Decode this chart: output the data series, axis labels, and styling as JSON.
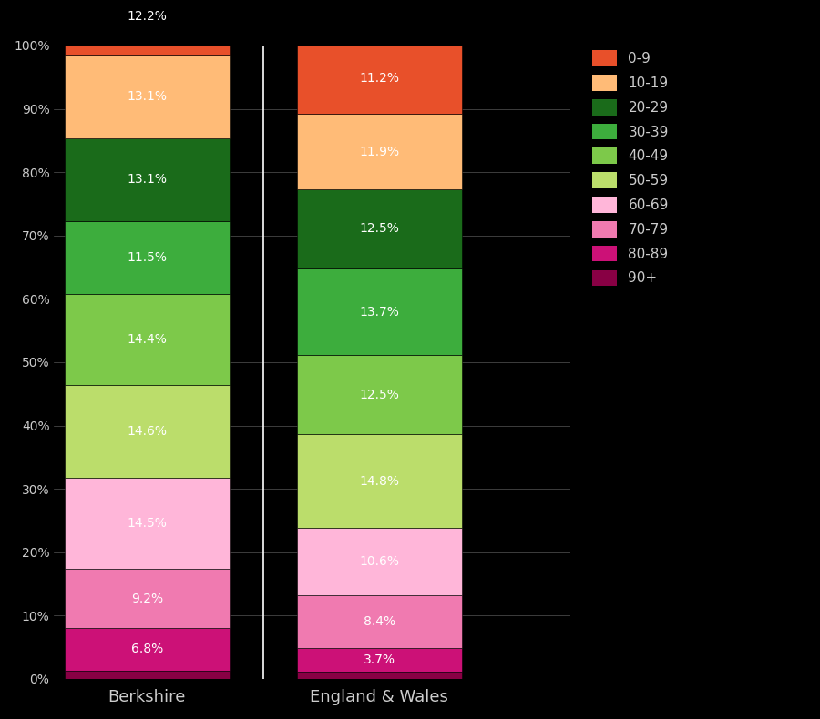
{
  "categories": [
    "Berkshire",
    "England & Wales"
  ],
  "age_groups_top_to_bottom": [
    "0-9",
    "10-19",
    "20-29",
    "30-39",
    "40-49",
    "50-59",
    "60-69",
    "70-79",
    "80-89",
    "90+"
  ],
  "colors": {
    "0-9": "#E8502A",
    "10-19": "#FFBB77",
    "20-29": "#1A6B1A",
    "30-39": "#3DAD3D",
    "40-49": "#7DC94A",
    "50-59": "#BBDD6B",
    "60-69": "#FFB6D9",
    "70-79": "#F07AB0",
    "80-89": "#CC1177",
    "90+": "#880044"
  },
  "values": {
    "Berkshire": {
      "90+": 1.3,
      "80-89": 6.8,
      "70-79": 9.2,
      "60-69": 14.5,
      "50-59": 14.6,
      "40-49": 14.4,
      "30-39": 11.5,
      "20-29": 13.1,
      "10-19": 13.1,
      "0-9": 12.2
    },
    "England & Wales": {
      "90+": 1.1,
      "80-89": 3.7,
      "70-79": 8.4,
      "60-69": 10.6,
      "50-59": 14.8,
      "40-49": 12.5,
      "30-39": 13.7,
      "20-29": 12.5,
      "10-19": 11.9,
      "0-9": 11.2
    }
  },
  "label_values": {
    "Berkshire": {
      "90+": "",
      "80-89": "6.8%",
      "70-79": "9.2%",
      "60-69": "14.5%",
      "50-59": "14.6%",
      "40-49": "14.4%",
      "30-39": "11.5%",
      "20-29": "13.1%",
      "10-19": "13.1%",
      "0-9": "12.2%"
    },
    "England & Wales": {
      "90+": "",
      "80-89": "3.7%",
      "70-79": "8.4%",
      "60-69": "10.6%",
      "50-59": "14.8%",
      "40-49": "12.5%",
      "30-39": "13.7%",
      "20-29": "12.5%",
      "10-19": "11.9%",
      "0-9": "11.2%"
    }
  },
  "background_color": "#000000",
  "text_color": "#CCCCCC",
  "bar_width": 0.32,
  "bar_positions": [
    0.18,
    0.63
  ],
  "xlim": [
    0.0,
    1.0
  ],
  "ylim": [
    0,
    100
  ],
  "yticks": [
    0,
    10,
    20,
    30,
    40,
    50,
    60,
    70,
    80,
    90,
    100
  ],
  "ytick_labels": [
    "0%",
    "10%",
    "20%",
    "30%",
    "40%",
    "50%",
    "60%",
    "70%",
    "80%",
    "90%",
    "100%"
  ],
  "label_fontsize": 10,
  "tick_fontsize": 10,
  "cat_fontsize": 13,
  "legend_fontsize": 11
}
